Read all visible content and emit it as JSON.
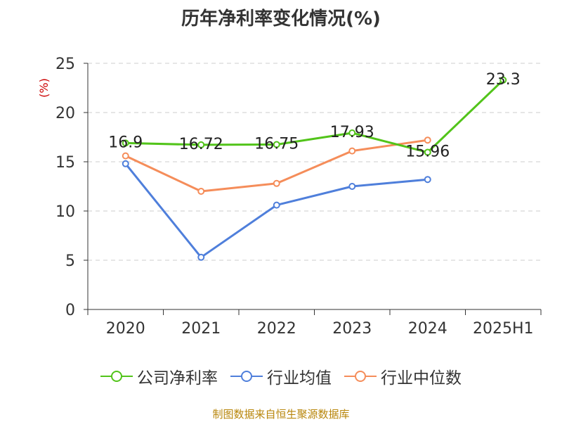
{
  "chart_data": {
    "type": "line",
    "title": "历年净利率变化情况(%)",
    "ylabel": "(%)",
    "categories": [
      "2020",
      "2021",
      "2022",
      "2023",
      "2024",
      "2025H1"
    ],
    "ylim": [
      0,
      25
    ],
    "yticks": [
      "0",
      "5",
      "10",
      "15",
      "20",
      "25"
    ],
    "grid": true,
    "legend_position": "bottom",
    "series": [
      {
        "name": "公司净利率",
        "color": "#52c41a",
        "values": [
          16.9,
          16.72,
          16.75,
          17.93,
          15.96,
          23.3
        ],
        "labels": [
          "16.9",
          "16.72",
          "16.75",
          "17.93",
          "15.96",
          "23.3"
        ]
      },
      {
        "name": "行业均值",
        "color": "#4f7fdb",
        "values": [
          14.8,
          5.3,
          10.6,
          12.5,
          13.2,
          null
        ],
        "labels": []
      },
      {
        "name": "行业中位数",
        "color": "#f58d5a",
        "values": [
          15.6,
          12.0,
          12.8,
          16.1,
          17.2,
          null
        ],
        "labels": []
      }
    ]
  },
  "source": "制图数据来自恒生聚源数据库"
}
